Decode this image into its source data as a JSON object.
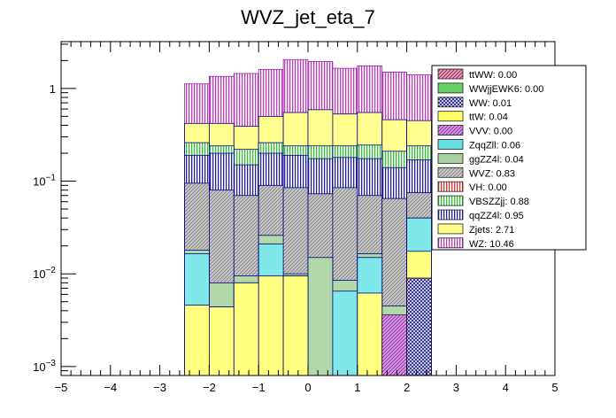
{
  "chart_data": {
    "type": "stacked-histogram",
    "title": "WVZ_jet_eta_7",
    "xlabel": "",
    "ylabel": "",
    "xlim": [
      -5,
      5
    ],
    "ylim": [
      0.0008,
      3.2
    ],
    "yscale": "log",
    "x_ticks": [
      "−5",
      "−4",
      "−3",
      "−2",
      "−1",
      "0",
      "1",
      "2",
      "3",
      "4",
      "5"
    ],
    "y_ticks": [
      {
        "value": 0.001,
        "base": "10",
        "exp": "−3"
      },
      {
        "value": 0.01,
        "base": "10",
        "exp": "−2"
      },
      {
        "value": 0.1,
        "base": "10",
        "exp": "−1"
      },
      {
        "value": 1,
        "base": "1",
        "exp": ""
      }
    ],
    "bin_edges": [
      -2.5,
      -2,
      -1.5,
      -1,
      -0.5,
      0,
      0.5,
      1,
      1.5,
      2,
      2.5
    ],
    "stack_tops": {
      "Zjets": [
        0.0046,
        0.0044,
        0.008,
        0.0095,
        0.0095,
        0.0,
        0.0,
        0.0062,
        0.0,
        0.0175
      ],
      "ZqqZll": [
        0.0165,
        0.0044,
        0.008,
        0.021,
        0.0095,
        0.0,
        0.0065,
        0.015,
        0.0,
        0.04
      ],
      "ggZZ4l": [
        0.018,
        0.008,
        0.0095,
        0.026,
        0.01,
        0.015,
        0.0085,
        0.0165,
        0.0045,
        0.04
      ],
      "WVZ": [
        0.095,
        0.08,
        0.07,
        0.09,
        0.085,
        0.073,
        0.085,
        0.07,
        0.065,
        0.075
      ],
      "qqZZ4l": [
        0.19,
        0.2,
        0.15,
        0.2,
        0.19,
        0.175,
        0.18,
        0.175,
        0.14,
        0.17
      ],
      "VBSZZjj": [
        0.26,
        0.24,
        0.22,
        0.26,
        0.24,
        0.24,
        0.24,
        0.245,
        0.21,
        0.24
      ],
      "ttW": [
        0.42,
        0.42,
        0.39,
        0.5,
        0.55,
        0.59,
        0.53,
        0.55,
        0.46,
        0.45
      ],
      "WZ": [
        1.12,
        1.35,
        1.45,
        1.6,
        2.05,
        1.95,
        1.65,
        1.75,
        1.5,
        1.4
      ]
    },
    "small_components": [
      {
        "name": "VVV",
        "bin": 8,
        "value": 0.0036
      },
      {
        "name": "WW",
        "bin": 9,
        "value": 0.009
      }
    ],
    "legend": {
      "placement": "top-right",
      "entries": [
        {
          "label": "ttWW: 0.00",
          "color": "#c83c78",
          "pattern": "hatch"
        },
        {
          "label": "WWjjEWK6: 0.00",
          "color": "#66d066",
          "pattern": "solid"
        },
        {
          "label": "WW: 0.01",
          "color": "#2a2a8c",
          "pattern": "cross"
        },
        {
          "label": "ttW: 0.04",
          "color": "#ffff66",
          "pattern": "solid"
        },
        {
          "label": "VVV: 0.00",
          "color": "#b040c8",
          "pattern": "hatch"
        },
        {
          "label": "ZqqZll: 0.06",
          "color": "#66e0e0",
          "pattern": "solid"
        },
        {
          "label": "ggZZ4l: 0.04",
          "color": "#a8d0a0",
          "pattern": "solid"
        },
        {
          "label": "WVZ: 0.83",
          "color": "#a8a8a8",
          "pattern": "hatch"
        },
        {
          "label": "VH: 0.00",
          "color": "#e03030",
          "pattern": "vlines"
        },
        {
          "label": "VBSZZjj: 0.88",
          "color": "#30c030",
          "pattern": "vlines"
        },
        {
          "label": "qqZZ4l: 0.95",
          "color": "#2020a0",
          "pattern": "vlines"
        },
        {
          "label": "Zjets: 2.71",
          "color": "#ffff88",
          "pattern": "solid"
        },
        {
          "label": "WZ: 10.46",
          "color": "#cc44cc",
          "pattern": "vlines"
        }
      ]
    }
  }
}
